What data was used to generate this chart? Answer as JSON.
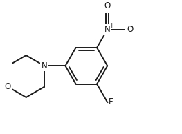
{
  "bg_color": "#ffffff",
  "line_color": "#1a1a1a",
  "line_width": 1.4,
  "font_size": 8.5,
  "figsize": [
    2.63,
    1.94
  ],
  "dpi": 100,
  "xlim": [
    -2.0,
    5.5
  ],
  "ylim": [
    -3.2,
    2.8
  ]
}
